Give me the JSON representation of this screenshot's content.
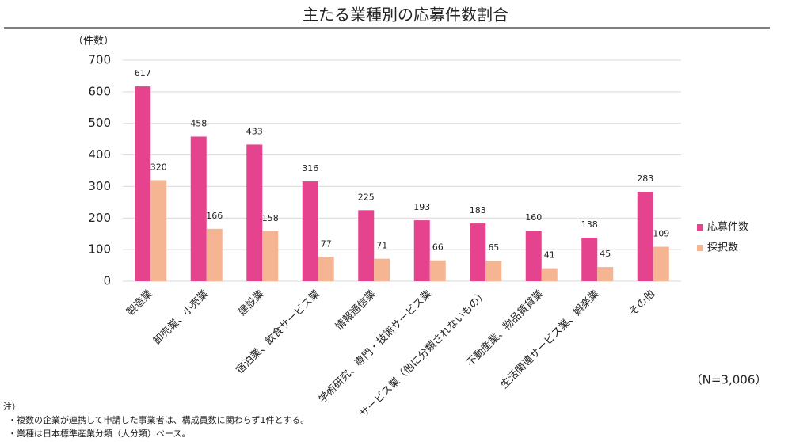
{
  "chart_data": {
    "type": "bar",
    "title": "主たる業種別の応募件数割合",
    "y_axis_label": "（件数）",
    "categories": [
      "製造業",
      "卸売業、小売業",
      "建設業",
      "宿泊業、飲食サービス業",
      "情報通信業",
      "学術研究、専門・技術サービス業",
      "サービス業（他に分類されないもの）",
      "不動産業、物品賃貸業",
      "生活関連サービス業、娯楽業",
      "その他"
    ],
    "series": [
      {
        "name": "応募件数",
        "color": "#e6438e",
        "values": [
          617,
          458,
          433,
          316,
          225,
          193,
          183,
          160,
          138,
          283
        ]
      },
      {
        "name": "採択数",
        "color": "#f5b593",
        "values": [
          320,
          166,
          158,
          77,
          71,
          66,
          65,
          41,
          45,
          109
        ]
      }
    ],
    "ylim": [
      0,
      700
    ],
    "yticks": [
      0,
      100,
      200,
      300,
      400,
      500,
      600,
      700
    ],
    "grid": true,
    "legend": "right",
    "annotation": "（N=3,006）",
    "notes": [
      "注）",
      "・複数の企業が連携して申請した事業者は、構成員数に関わらず1件とする。",
      "・業種は日本標準産業分類（大分類）ベース。"
    ]
  }
}
